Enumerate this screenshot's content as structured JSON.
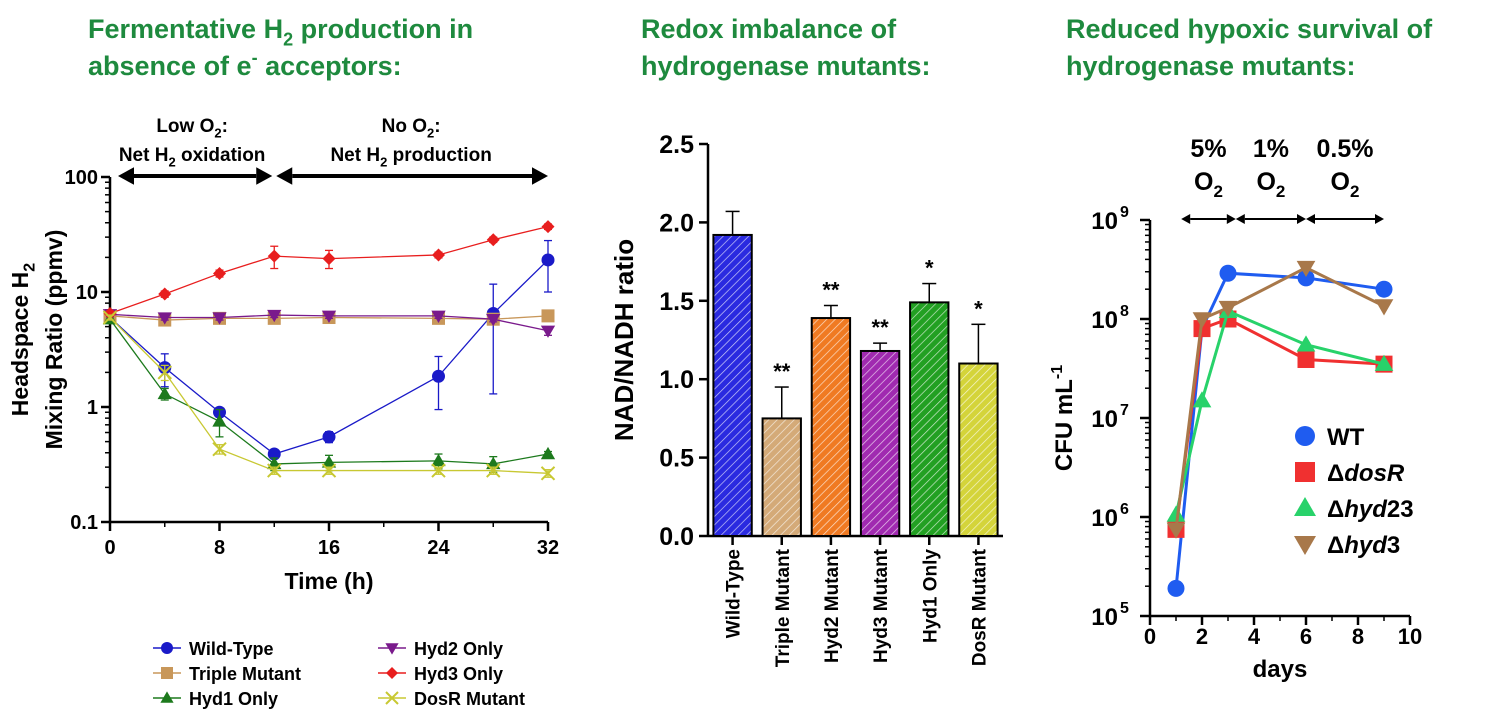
{
  "chart_data": [
    {
      "type": "line",
      "title": "Fermentative H₂ production in absence of e⁻ acceptors:",
      "title_lines": [
        "Fermentative H₂ production in",
        "absence of e⁻ acceptors:"
      ],
      "xlabel": "Time (h)",
      "ylabel": "Headspace H₂ Mixing Ratio (ppmv)",
      "ylabel_lines": [
        "Headspace H₂",
        "Mixing Ratio (ppmv)"
      ],
      "yscale": "log",
      "xlim": [
        0,
        32
      ],
      "ylim": [
        0.1,
        100
      ],
      "xticks": [
        "0",
        "8",
        "16",
        "24",
        "32"
      ],
      "yticks": [
        "0.1",
        "1",
        "10",
        "100"
      ],
      "annotations": [
        {
          "lines": [
            "Low O₂:",
            "Net H₂ oxidation"
          ],
          "range": [
            0,
            12
          ]
        },
        {
          "lines": [
            "No O₂:",
            "Net H₂ production"
          ],
          "range": [
            12,
            32
          ]
        }
      ],
      "legend_position": "bottom",
      "series": [
        {
          "name": "Wild-Type",
          "color": "#1a1ac8",
          "marker": "circle",
          "x": [
            0,
            4,
            8,
            12,
            16,
            24,
            28,
            32
          ],
          "y": [
            6.0,
            2.2,
            0.9,
            0.39,
            0.55,
            1.85,
            6.5,
            19
          ],
          "err": [
            0.4,
            0.7,
            0.08,
            0.03,
            0.06,
            0.9,
            5.2,
            9
          ]
        },
        {
          "name": "Triple Mutant",
          "color": "#c8975a",
          "marker": "square",
          "x": [
            0,
            4,
            8,
            12,
            16,
            24,
            28,
            32
          ],
          "y": [
            6.2,
            5.7,
            5.9,
            5.9,
            6.0,
            5.9,
            5.8,
            6.2
          ],
          "err": [
            0.3,
            0.3,
            0.3,
            0.3,
            0.3,
            0.3,
            0.3,
            0.5
          ]
        },
        {
          "name": "Hyd1 Only",
          "color": "#1d7a1d",
          "marker": "triangle-up",
          "x": [
            0,
            4,
            8,
            12,
            16,
            24,
            28,
            32
          ],
          "y": [
            5.8,
            1.3,
            0.75,
            0.32,
            0.33,
            0.34,
            0.32,
            0.39
          ],
          "err": [
            0.3,
            0.15,
            0.2,
            0.04,
            0.05,
            0.05,
            0.05,
            0.02
          ]
        },
        {
          "name": "Hyd2 Only",
          "color": "#7a1a8c",
          "marker": "triangle-down",
          "x": [
            0,
            4,
            8,
            12,
            16,
            24,
            28,
            32
          ],
          "y": [
            6.4,
            6.0,
            6.0,
            6.3,
            6.2,
            6.2,
            5.8,
            4.6
          ],
          "err": [
            0.3,
            0.3,
            0.3,
            0.3,
            0.3,
            0.3,
            0.3,
            0.4
          ]
        },
        {
          "name": "Hyd3 Only",
          "color": "#e81e1e",
          "marker": "diamond",
          "x": [
            0,
            4,
            8,
            12,
            16,
            24,
            28,
            32
          ],
          "y": [
            6.5,
            9.6,
            14.5,
            20.5,
            19.5,
            21,
            28.5,
            37
          ],
          "err": [
            0.3,
            0.6,
            1.0,
            4.5,
            3.5,
            1.2,
            1.5,
            2.0
          ]
        },
        {
          "name": "DosR Mutant",
          "color": "#c8c832",
          "marker": "x",
          "x": [
            0,
            4,
            8,
            12,
            16,
            24,
            28,
            32
          ],
          "y": [
            6.0,
            2.0,
            0.43,
            0.28,
            0.28,
            0.28,
            0.28,
            0.265
          ],
          "err": [
            0.3,
            0.3,
            0.04,
            0.02,
            0.02,
            0.02,
            0.02,
            0.02
          ]
        }
      ]
    },
    {
      "type": "bar",
      "title": "Redox imbalance of hydrogenase mutants:",
      "title_lines": [
        "Redox imbalance of",
        "hydrogenase mutants:"
      ],
      "ylabel": "NAD/NADH ratio",
      "ylim": [
        0,
        2.5
      ],
      "yticks": [
        "0.0",
        "0.5",
        "1.0",
        "1.5",
        "2.0",
        "2.5"
      ],
      "categories": [
        "Wild-Type",
        "Triple Mutant",
        "Hyd2 Mutant",
        "Hyd3 Mutant",
        "Hyd1 Only",
        "DosR Mutant"
      ],
      "values": [
        1.92,
        0.75,
        1.39,
        1.18,
        1.49,
        1.1
      ],
      "errors": [
        0.15,
        0.2,
        0.08,
        0.05,
        0.12,
        0.25
      ],
      "significance": [
        "",
        "**",
        "**",
        "**",
        "*",
        "*"
      ],
      "colors": [
        "#2a2ae0",
        "#d4aa78",
        "#f07a22",
        "#a02ab0",
        "#22a022",
        "#d4d43a"
      ],
      "pattern": "diagonal hatch"
    },
    {
      "type": "line",
      "title": "Reduced hypoxic survival of hydrogenase mutants:",
      "title_lines": [
        "Reduced hypoxic survival of",
        "hydrogenase mutants:"
      ],
      "xlabel": "days",
      "ylabel": "CFU mL⁻¹",
      "yscale": "log",
      "xlim": [
        0,
        10
      ],
      "ylim": [
        100000,
        1000000000
      ],
      "xticks": [
        "0",
        "2",
        "4",
        "6",
        "8",
        "10"
      ],
      "yticks": [
        {
          "base": "10",
          "exp": "5"
        },
        {
          "base": "10",
          "exp": "6"
        },
        {
          "base": "10",
          "exp": "7"
        },
        {
          "base": "10",
          "exp": "8"
        },
        {
          "base": "10",
          "exp": "9"
        }
      ],
      "annotations": [
        {
          "lines": [
            "5%",
            "O₂"
          ],
          "range": [
            1.2,
            3.3
          ]
        },
        {
          "lines": [
            "1%",
            "O₂"
          ],
          "range": [
            3.3,
            6.0
          ]
        },
        {
          "lines": [
            "0.5%",
            "O₂"
          ],
          "range": [
            6.0,
            9.0
          ]
        }
      ],
      "legend_position": "right",
      "series": [
        {
          "name": "WT",
          "name_prefix": "",
          "name_italic": "",
          "name_suffix": "",
          "label": "WT",
          "color": "#1f5cf0",
          "marker": "circle",
          "x": [
            1,
            2,
            3,
            6,
            9
          ],
          "y": [
            190000,
            80000000,
            290000000,
            260000000,
            200000000
          ]
        },
        {
          "name": "ΔdosR",
          "name_prefix": "Δ",
          "name_italic": "dosR",
          "name_suffix": "",
          "color": "#f03030",
          "marker": "square",
          "x": [
            1,
            2,
            3,
            6,
            9
          ],
          "y": [
            750000,
            80000000,
            100000000,
            39000000,
            35000000
          ]
        },
        {
          "name": "Δhyd23",
          "name_prefix": "Δ",
          "name_italic": "hyd",
          "name_suffix": "23",
          "color": "#28d26a",
          "marker": "triangle-up",
          "x": [
            1,
            2,
            3,
            6,
            9
          ],
          "y": [
            1050000,
            15000000,
            120000000,
            55000000,
            35000000
          ]
        },
        {
          "name": "Δhyd3",
          "name_prefix": "Δ",
          "name_italic": "hyd",
          "name_suffix": "3",
          "color": "#a8784a",
          "marker": "triangle-down",
          "x": [
            1,
            2,
            3,
            6,
            9
          ],
          "y": [
            750000,
            100000000,
            130000000,
            330000000,
            135000000
          ]
        }
      ]
    }
  ]
}
